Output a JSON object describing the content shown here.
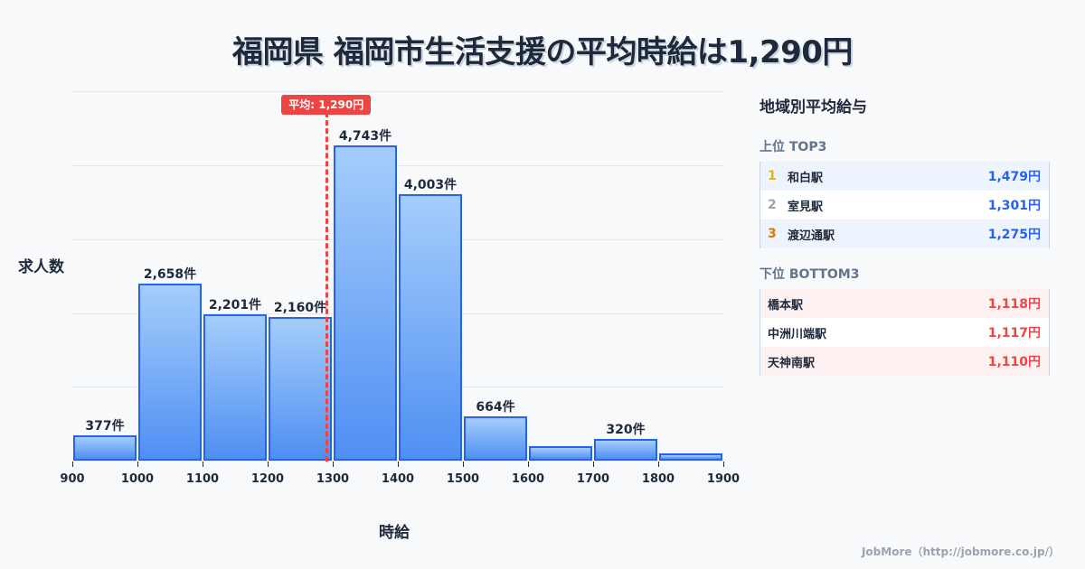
{
  "title": "福岡県 福岡市生活支援の平均時給は1,290円",
  "chart_data": {
    "type": "bar",
    "title": "福岡県 福岡市生活支援の平均時給は1,290円",
    "xlabel": "時給",
    "ylabel": "求人数",
    "categories": [
      "900-1000",
      "1000-1100",
      "1100-1200",
      "1200-1300",
      "1300-1400",
      "1400-1500",
      "1500-1600",
      "1600-1700",
      "1700-1800",
      "1800-1900"
    ],
    "x_ticks": [
      "900",
      "1000",
      "1100",
      "1200",
      "1300",
      "1400",
      "1500",
      "1600",
      "1700",
      "1800",
      "1900"
    ],
    "values": [
      377,
      2658,
      2201,
      2160,
      4743,
      4003,
      664,
      218,
      320,
      109
    ],
    "value_labels": [
      "377件",
      "2,658件",
      "2,201件",
      "2,160件",
      "4,743件",
      "4,003件",
      "664件",
      "",
      "320件",
      ""
    ],
    "xlim": [
      900,
      1900
    ],
    "grid": true,
    "average": {
      "value": 1290,
      "label": "平均: 1,290円"
    }
  },
  "panel": {
    "title": "地域別平均給与",
    "top_title": "上位 TOP3",
    "top": [
      {
        "rank": "1",
        "name": "和白駅",
        "value": "1,479円",
        "color": "#eab308"
      },
      {
        "rank": "2",
        "name": "室見駅",
        "value": "1,301円",
        "color": "#9ca3af"
      },
      {
        "rank": "3",
        "name": "渡辺通駅",
        "value": "1,275円",
        "color": "#d97706"
      }
    ],
    "bottom_title": "下位 BOTTOM3",
    "bottom": [
      {
        "name": "橋本駅",
        "value": "1,118円"
      },
      {
        "name": "中洲川端駅",
        "value": "1,117円"
      },
      {
        "name": "天神南駅",
        "value": "1,110円"
      }
    ]
  },
  "footer": "JobMore（http://jobmore.co.jp/）"
}
